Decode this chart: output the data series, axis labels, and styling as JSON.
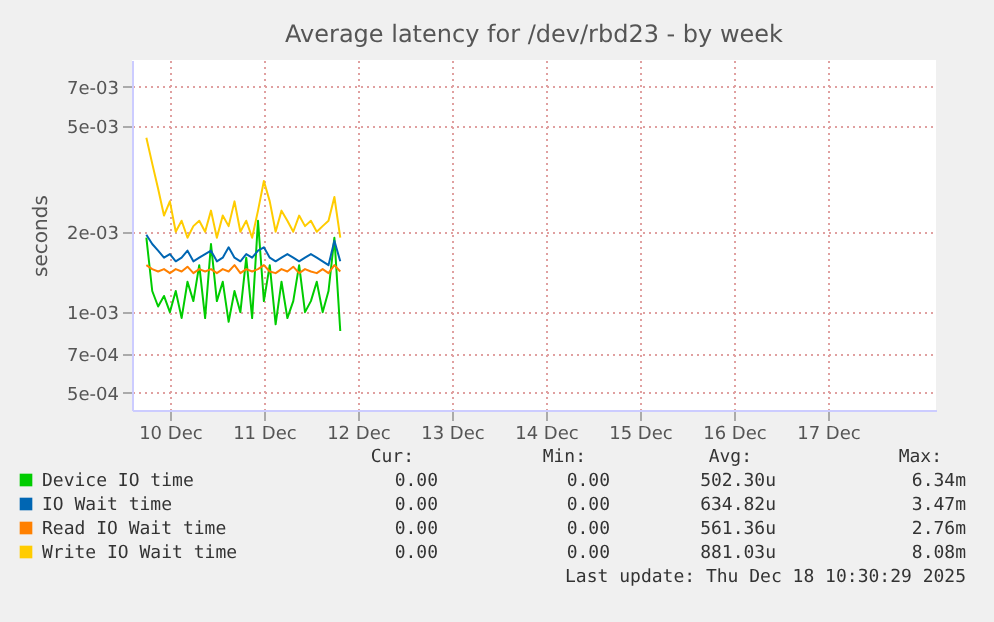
{
  "chart_data": {
    "type": "line",
    "title": "Average latency for /dev/rbd23 - by week",
    "ylabel": "seconds",
    "x": [
      "2025-12-09T18:00",
      "2025-12-09T19:30",
      "2025-12-09T21:00",
      "2025-12-09T22:30",
      "2025-12-10T00:00",
      "2025-12-10T01:30",
      "2025-12-10T03:00",
      "2025-12-10T04:30",
      "2025-12-10T06:00",
      "2025-12-10T07:30",
      "2025-12-10T09:00",
      "2025-12-10T10:30",
      "2025-12-10T12:00",
      "2025-12-10T13:30",
      "2025-12-10T15:00",
      "2025-12-10T16:30",
      "2025-12-10T18:00",
      "2025-12-10T19:30",
      "2025-12-10T21:00",
      "2025-12-10T22:30",
      "2025-12-11T00:00",
      "2025-12-11T01:30",
      "2025-12-11T03:00",
      "2025-12-11T04:30",
      "2025-12-11T06:00",
      "2025-12-11T07:30",
      "2025-12-11T09:00",
      "2025-12-11T10:30",
      "2025-12-11T12:00",
      "2025-12-11T13:30",
      "2025-12-11T15:00",
      "2025-12-11T16:30",
      "2025-12-11T18:00",
      "2025-12-11T19:30"
    ],
    "series": [
      {
        "name": "Device IO time",
        "color": "#00cc00",
        "values": [
          0.0019,
          0.0012,
          0.00105,
          0.00115,
          0.001,
          0.0012,
          0.00095,
          0.0013,
          0.0011,
          0.0015,
          0.00095,
          0.0018,
          0.0011,
          0.0013,
          0.00092,
          0.0012,
          0.001,
          0.0016,
          0.00095,
          0.0022,
          0.0011,
          0.0015,
          0.0009,
          0.0013,
          0.00095,
          0.0011,
          0.0015,
          0.001,
          0.0011,
          0.0013,
          0.001,
          0.0012,
          0.0019,
          0.00085
        ]
      },
      {
        "name": "IO Wait time",
        "color": "#0066b3",
        "values": [
          0.00195,
          0.0018,
          0.0017,
          0.0016,
          0.00165,
          0.00155,
          0.0016,
          0.0017,
          0.00155,
          0.0016,
          0.00165,
          0.0017,
          0.00155,
          0.0016,
          0.00175,
          0.0016,
          0.00155,
          0.00165,
          0.0016,
          0.0017,
          0.00175,
          0.0016,
          0.00155,
          0.0016,
          0.00165,
          0.0016,
          0.00155,
          0.0016,
          0.00165,
          0.0016,
          0.00155,
          0.0015,
          0.00185,
          0.00155
        ]
      },
      {
        "name": "Read IO Wait time",
        "color": "#ff8000",
        "values": [
          0.0015,
          0.00145,
          0.00142,
          0.00145,
          0.0014,
          0.00145,
          0.00142,
          0.00148,
          0.0014,
          0.00145,
          0.00142,
          0.00145,
          0.0014,
          0.00145,
          0.00142,
          0.0015,
          0.0014,
          0.00145,
          0.00142,
          0.00145,
          0.0015,
          0.00142,
          0.0014,
          0.00145,
          0.00142,
          0.00148,
          0.0014,
          0.00145,
          0.00142,
          0.0014,
          0.00145,
          0.0014,
          0.0015,
          0.00142
        ]
      },
      {
        "name": "Write IO Wait time",
        "color": "#ffcc00",
        "values": [
          0.0045,
          0.0036,
          0.0029,
          0.0023,
          0.0026,
          0.002,
          0.0022,
          0.0019,
          0.0021,
          0.0022,
          0.002,
          0.0024,
          0.0019,
          0.0023,
          0.0021,
          0.0026,
          0.002,
          0.0022,
          0.0019,
          0.0024,
          0.0031,
          0.0026,
          0.002,
          0.0024,
          0.0022,
          0.002,
          0.0023,
          0.0021,
          0.0022,
          0.002,
          0.0021,
          0.0022,
          0.0027,
          0.0019
        ]
      }
    ],
    "log": true,
    "ylim": [
      0.00043,
      0.0088
    ],
    "yticks": [
      {
        "value": 0.0005,
        "label": "5e-04"
      },
      {
        "value": 0.0007,
        "label": "7e-04"
      },
      {
        "value": 0.001,
        "label": "1e-03"
      },
      {
        "value": 0.002,
        "label": "2e-03"
      },
      {
        "value": 0.005,
        "label": "5e-03"
      },
      {
        "value": 0.007,
        "label": "7e-03"
      }
    ],
    "xlim": [
      "2025-12-09T14:20",
      "2025-12-18T03:35"
    ],
    "xticks": [
      {
        "value": "2025-12-10",
        "label": "10 Dec"
      },
      {
        "value": "2025-12-11",
        "label": "11 Dec"
      },
      {
        "value": "2025-12-12",
        "label": "12 Dec"
      },
      {
        "value": "2025-12-13",
        "label": "13 Dec"
      },
      {
        "value": "2025-12-14",
        "label": "14 Dec"
      },
      {
        "value": "2025-12-15",
        "label": "15 Dec"
      },
      {
        "value": "2025-12-16",
        "label": "16 Dec"
      },
      {
        "value": "2025-12-17",
        "label": "17 Dec"
      }
    ],
    "grid": true,
    "legend": "bottom",
    "marker": "none",
    "line_style": "solid",
    "annotations": [
      "Cur:",
      "Min:",
      "Avg:",
      "Max:",
      "0.00",
      "0.00",
      "502.30u",
      "6.34m",
      "0.00",
      "0.00",
      "634.82u",
      "3.47m",
      "0.00",
      "0.00",
      "561.36u",
      "2.76m",
      "0.00",
      "0.00",
      "881.03u",
      "8.08m",
      "Last update: Thu Dec 18 10:30:29 2025"
    ]
  }
}
